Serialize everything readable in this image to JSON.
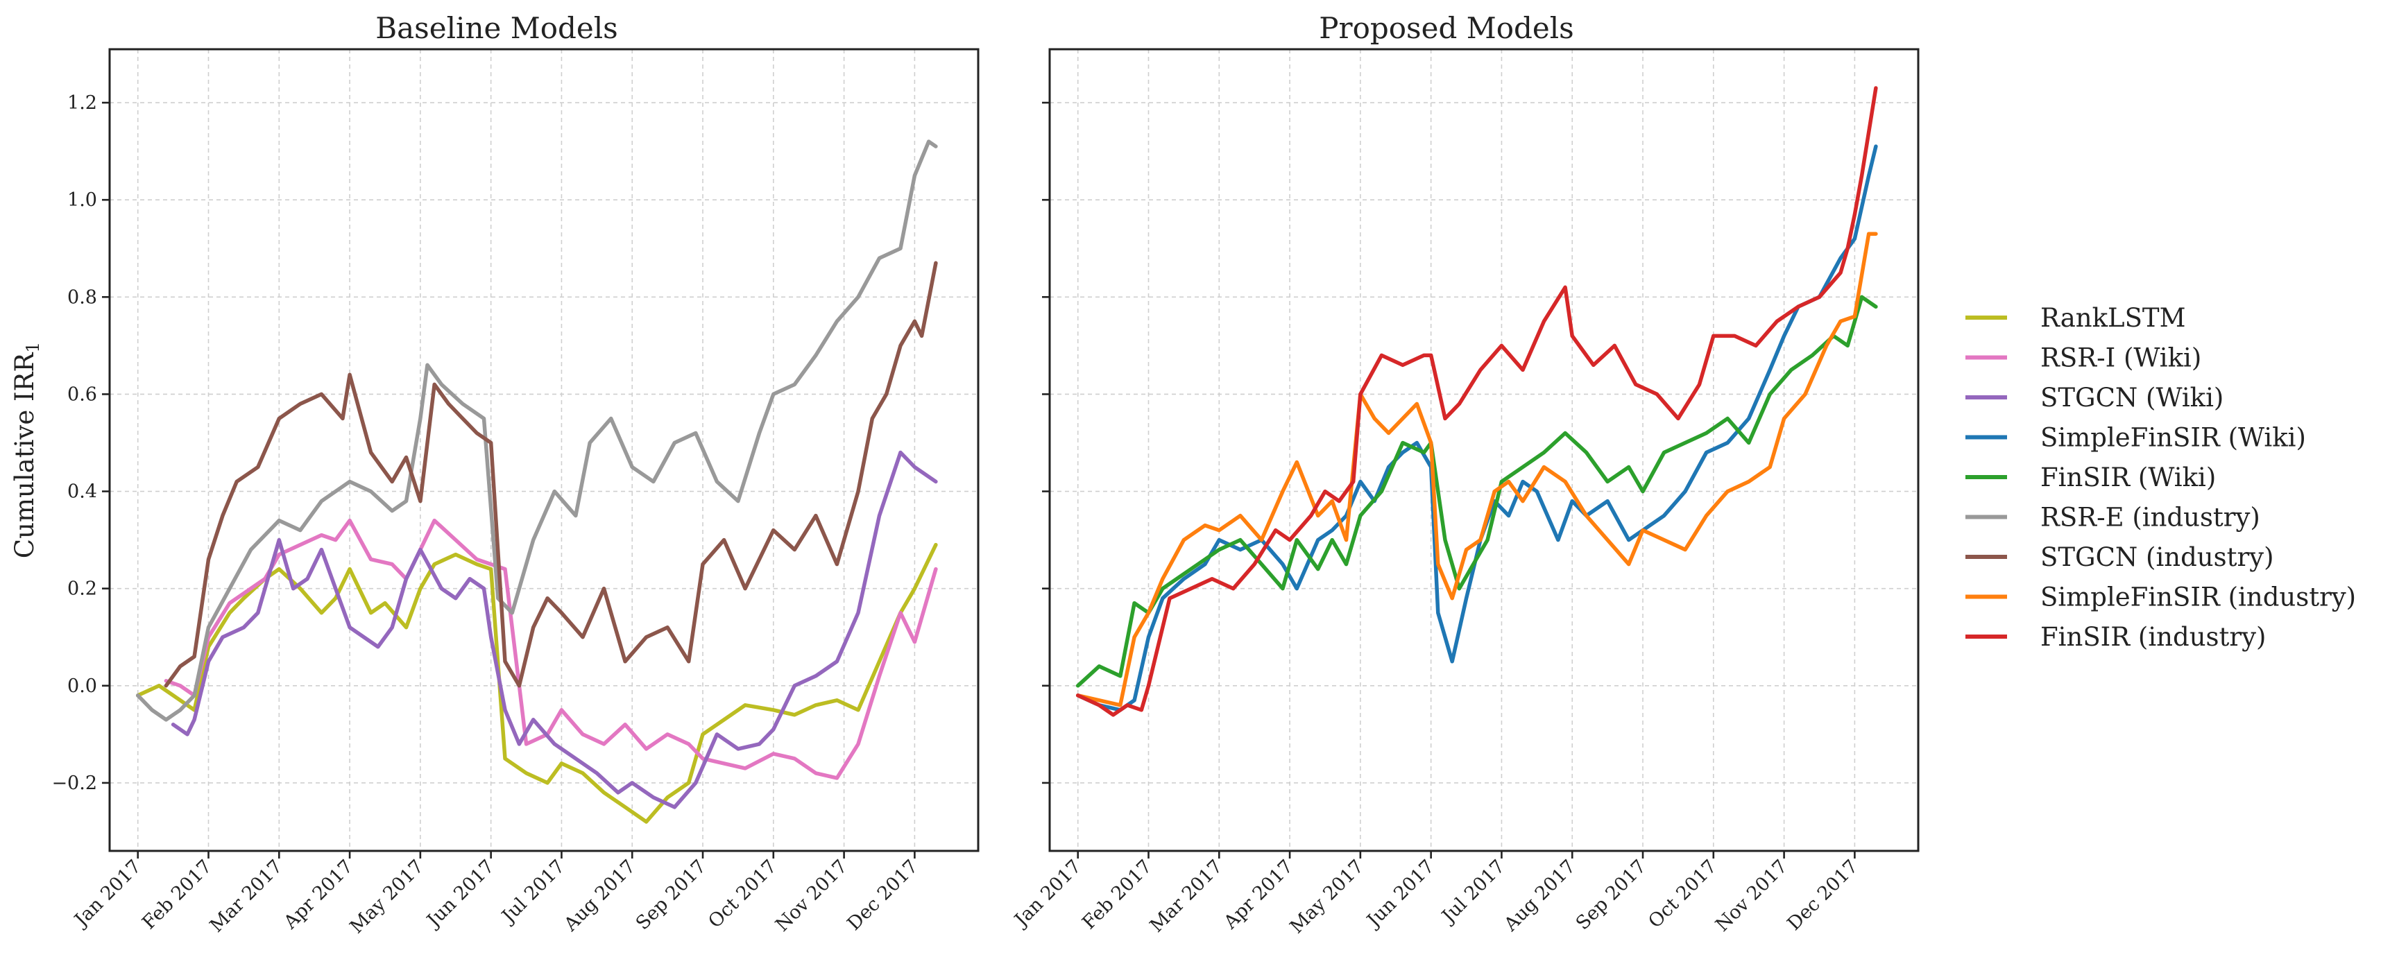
{
  "chart_data": {
    "type": "line",
    "ylabel": "Cumulative IRR",
    "ylabel_subscript": "1",
    "ylim": [
      -0.34,
      1.31
    ],
    "yticks": [
      -0.2,
      0.0,
      0.2,
      0.4,
      0.6,
      0.8,
      1.0,
      1.2
    ],
    "ytick_labels": [
      "−0.2",
      "0.0",
      "0.2",
      "0.4",
      "0.6",
      "0.8",
      "1.0",
      "1.2"
    ],
    "xlim": [
      -0.4,
      11.9
    ],
    "xticks": [
      0,
      1,
      2,
      3,
      4,
      5,
      6,
      7,
      8,
      9,
      10,
      11
    ],
    "xtick_labels": [
      "Jan 2017",
      "Feb 2017",
      "Mar 2017",
      "Apr 2017",
      "May 2017",
      "Jun 2017",
      "Jul 2017",
      "Aug 2017",
      "Sep 2017",
      "Oct 2017",
      "Nov 2017",
      "Dec 2017"
    ],
    "grid": true,
    "legend_position": "right",
    "panels": [
      {
        "title": "Baseline Models",
        "series": [
          {
            "name": "RankLSTM",
            "color": "#bcbd22",
            "x": [
              0.0,
              0.3,
              0.6,
              0.8,
              1.0,
              1.3,
              1.5,
              1.8,
              2.0,
              2.3,
              2.6,
              2.8,
              3.0,
              3.3,
              3.5,
              3.8,
              4.0,
              4.2,
              4.5,
              4.8,
              5.0,
              5.2,
              5.5,
              5.8,
              6.0,
              6.3,
              6.6,
              6.9,
              7.2,
              7.5,
              7.8,
              8.0,
              8.3,
              8.6,
              9.0,
              9.3,
              9.6,
              9.9,
              10.2,
              10.5,
              10.8,
              11.0,
              11.3
            ],
            "y": [
              -0.02,
              0.0,
              -0.03,
              -0.05,
              0.08,
              0.15,
              0.18,
              0.22,
              0.24,
              0.2,
              0.15,
              0.18,
              0.24,
              0.15,
              0.17,
              0.12,
              0.2,
              0.25,
              0.27,
              0.25,
              0.24,
              -0.15,
              -0.18,
              -0.2,
              -0.16,
              -0.18,
              -0.22,
              -0.25,
              -0.28,
              -0.23,
              -0.2,
              -0.1,
              -0.07,
              -0.04,
              -0.05,
              -0.06,
              -0.04,
              -0.03,
              -0.05,
              0.05,
              0.15,
              0.2,
              0.29
            ]
          },
          {
            "name": "RSR-I (Wiki)",
            "color": "#e377c2",
            "x": [
              0.4,
              0.6,
              0.8,
              1.0,
              1.3,
              1.5,
              1.8,
              2.0,
              2.3,
              2.6,
              2.8,
              3.0,
              3.3,
              3.6,
              3.8,
              4.0,
              4.2,
              4.5,
              4.8,
              5.0,
              5.2,
              5.5,
              5.8,
              6.0,
              6.3,
              6.6,
              6.9,
              7.2,
              7.5,
              7.8,
              8.0,
              8.3,
              8.6,
              9.0,
              9.3,
              9.6,
              9.9,
              10.2,
              10.5,
              10.8,
              11.0,
              11.3
            ],
            "y": [
              0.01,
              0.0,
              -0.02,
              0.1,
              0.17,
              0.19,
              0.22,
              0.27,
              0.29,
              0.31,
              0.3,
              0.34,
              0.26,
              0.25,
              0.22,
              0.28,
              0.34,
              0.3,
              0.26,
              0.25,
              0.24,
              -0.12,
              -0.1,
              -0.05,
              -0.1,
              -0.12,
              -0.08,
              -0.13,
              -0.1,
              -0.12,
              -0.15,
              -0.16,
              -0.17,
              -0.14,
              -0.15,
              -0.18,
              -0.19,
              -0.12,
              0.02,
              0.15,
              0.09,
              0.24
            ]
          },
          {
            "name": "STGCN (Wiki)",
            "color": "#9467bd",
            "x": [
              0.5,
              0.7,
              0.8,
              1.0,
              1.2,
              1.5,
              1.7,
              2.0,
              2.2,
              2.4,
              2.6,
              2.8,
              3.0,
              3.2,
              3.4,
              3.6,
              3.8,
              4.0,
              4.3,
              4.5,
              4.7,
              4.9,
              5.0,
              5.2,
              5.4,
              5.6,
              5.9,
              6.2,
              6.5,
              6.8,
              7.0,
              7.3,
              7.6,
              7.9,
              8.2,
              8.5,
              8.8,
              9.0,
              9.3,
              9.6,
              9.9,
              10.2,
              10.5,
              10.8,
              11.0,
              11.3
            ],
            "y": [
              -0.08,
              -0.1,
              -0.07,
              0.05,
              0.1,
              0.12,
              0.15,
              0.3,
              0.2,
              0.22,
              0.28,
              0.2,
              0.12,
              0.1,
              0.08,
              0.12,
              0.22,
              0.28,
              0.2,
              0.18,
              0.22,
              0.2,
              0.1,
              -0.05,
              -0.12,
              -0.07,
              -0.12,
              -0.15,
              -0.18,
              -0.22,
              -0.2,
              -0.23,
              -0.25,
              -0.2,
              -0.1,
              -0.13,
              -0.12,
              -0.09,
              0.0,
              0.02,
              0.05,
              0.15,
              0.35,
              0.48,
              0.45,
              0.42
            ]
          },
          {
            "name": "RSR-E (industry)",
            "color": "#999999",
            "x": [
              0.0,
              0.2,
              0.4,
              0.6,
              0.8,
              1.0,
              1.3,
              1.6,
              2.0,
              2.3,
              2.6,
              3.0,
              3.3,
              3.6,
              3.8,
              4.0,
              4.1,
              4.3,
              4.6,
              4.9,
              5.1,
              5.3,
              5.6,
              5.9,
              6.2,
              6.4,
              6.7,
              7.0,
              7.3,
              7.6,
              7.9,
              8.2,
              8.5,
              8.8,
              9.0,
              9.3,
              9.6,
              9.9,
              10.2,
              10.5,
              10.8,
              11.0,
              11.2,
              11.3
            ],
            "y": [
              -0.02,
              -0.05,
              -0.07,
              -0.05,
              -0.02,
              0.12,
              0.2,
              0.28,
              0.34,
              0.32,
              0.38,
              0.42,
              0.4,
              0.36,
              0.38,
              0.55,
              0.66,
              0.62,
              0.58,
              0.55,
              0.18,
              0.15,
              0.3,
              0.4,
              0.35,
              0.5,
              0.55,
              0.45,
              0.42,
              0.5,
              0.52,
              0.42,
              0.38,
              0.52,
              0.6,
              0.62,
              0.68,
              0.75,
              0.8,
              0.88,
              0.9,
              1.05,
              1.12,
              1.11
            ]
          },
          {
            "name": "STGCN (industry)",
            "color": "#8c564b",
            "x": [
              0.4,
              0.6,
              0.8,
              1.0,
              1.2,
              1.4,
              1.7,
              2.0,
              2.3,
              2.6,
              2.9,
              3.0,
              3.3,
              3.6,
              3.8,
              4.0,
              4.2,
              4.4,
              4.6,
              4.8,
              5.0,
              5.2,
              5.4,
              5.6,
              5.8,
              6.0,
              6.3,
              6.6,
              6.9,
              7.2,
              7.5,
              7.8,
              8.0,
              8.3,
              8.6,
              9.0,
              9.3,
              9.6,
              9.9,
              10.2,
              10.4,
              10.6,
              10.8,
              11.0,
              11.1,
              11.3
            ],
            "y": [
              0.0,
              0.04,
              0.06,
              0.26,
              0.35,
              0.42,
              0.45,
              0.55,
              0.58,
              0.6,
              0.55,
              0.64,
              0.48,
              0.42,
              0.47,
              0.38,
              0.62,
              0.58,
              0.55,
              0.52,
              0.5,
              0.05,
              0.0,
              0.12,
              0.18,
              0.15,
              0.1,
              0.2,
              0.05,
              0.1,
              0.12,
              0.05,
              0.25,
              0.3,
              0.2,
              0.32,
              0.28,
              0.35,
              0.25,
              0.4,
              0.55,
              0.6,
              0.7,
              0.75,
              0.72,
              0.87
            ]
          }
        ]
      },
      {
        "title": "Proposed Models",
        "series": [
          {
            "name": "SimpleFinSIR (Wiki)",
            "color": "#1f77b4",
            "x": [
              0.0,
              0.3,
              0.6,
              0.8,
              1.0,
              1.2,
              1.5,
              1.8,
              2.0,
              2.3,
              2.6,
              2.9,
              3.1,
              3.4,
              3.6,
              3.8,
              4.0,
              4.2,
              4.4,
              4.6,
              4.8,
              5.0,
              5.1,
              5.3,
              5.5,
              5.7,
              5.9,
              6.1,
              6.3,
              6.5,
              6.8,
              7.0,
              7.2,
              7.5,
              7.8,
              8.0,
              8.3,
              8.6,
              8.9,
              9.2,
              9.5,
              9.8,
              10.0,
              10.2,
              10.5,
              10.8,
              11.0,
              11.2,
              11.3
            ],
            "y": [
              -0.02,
              -0.04,
              -0.05,
              -0.03,
              0.1,
              0.18,
              0.22,
              0.25,
              0.3,
              0.28,
              0.3,
              0.25,
              0.2,
              0.3,
              0.32,
              0.35,
              0.42,
              0.38,
              0.45,
              0.48,
              0.5,
              0.45,
              0.15,
              0.05,
              0.18,
              0.3,
              0.38,
              0.35,
              0.42,
              0.4,
              0.3,
              0.38,
              0.35,
              0.38,
              0.3,
              0.32,
              0.35,
              0.4,
              0.48,
              0.5,
              0.55,
              0.65,
              0.72,
              0.78,
              0.8,
              0.88,
              0.92,
              1.05,
              1.11
            ]
          },
          {
            "name": "FinSIR (Wiki)",
            "color": "#2ca02c",
            "x": [
              0.0,
              0.3,
              0.6,
              0.8,
              1.0,
              1.2,
              1.4,
              1.7,
              2.0,
              2.3,
              2.6,
              2.9,
              3.1,
              3.4,
              3.6,
              3.8,
              4.0,
              4.3,
              4.6,
              4.9,
              5.0,
              5.2,
              5.4,
              5.6,
              5.8,
              6.0,
              6.3,
              6.6,
              6.9,
              7.2,
              7.5,
              7.8,
              8.0,
              8.3,
              8.6,
              8.9,
              9.2,
              9.5,
              9.8,
              10.1,
              10.4,
              10.7,
              10.9,
              11.1,
              11.3
            ],
            "y": [
              0.0,
              0.04,
              0.02,
              0.17,
              0.15,
              0.2,
              0.22,
              0.25,
              0.28,
              0.3,
              0.25,
              0.2,
              0.3,
              0.24,
              0.3,
              0.25,
              0.35,
              0.4,
              0.5,
              0.48,
              0.5,
              0.3,
              0.2,
              0.25,
              0.3,
              0.42,
              0.45,
              0.48,
              0.52,
              0.48,
              0.42,
              0.45,
              0.4,
              0.48,
              0.5,
              0.52,
              0.55,
              0.5,
              0.6,
              0.65,
              0.68,
              0.72,
              0.7,
              0.8,
              0.78
            ]
          },
          {
            "name": "SimpleFinSIR (industry)",
            "color": "#ff7f0e",
            "x": [
              0.0,
              0.3,
              0.6,
              0.8,
              1.0,
              1.2,
              1.5,
              1.8,
              2.0,
              2.3,
              2.6,
              2.9,
              3.1,
              3.4,
              3.6,
              3.8,
              4.0,
              4.2,
              4.4,
              4.6,
              4.8,
              5.0,
              5.1,
              5.3,
              5.5,
              5.7,
              5.9,
              6.1,
              6.3,
              6.6,
              6.9,
              7.2,
              7.5,
              7.8,
              8.0,
              8.3,
              8.6,
              8.9,
              9.2,
              9.5,
              9.8,
              10.0,
              10.3,
              10.6,
              10.8,
              11.0,
              11.2,
              11.3
            ],
            "y": [
              -0.02,
              -0.03,
              -0.04,
              0.1,
              0.15,
              0.22,
              0.3,
              0.33,
              0.32,
              0.35,
              0.3,
              0.4,
              0.46,
              0.35,
              0.38,
              0.3,
              0.6,
              0.55,
              0.52,
              0.55,
              0.58,
              0.5,
              0.25,
              0.18,
              0.28,
              0.3,
              0.4,
              0.42,
              0.38,
              0.45,
              0.42,
              0.35,
              0.3,
              0.25,
              0.32,
              0.3,
              0.28,
              0.35,
              0.4,
              0.42,
              0.45,
              0.55,
              0.6,
              0.7,
              0.75,
              0.76,
              0.93,
              0.93
            ]
          },
          {
            "name": "FinSIR (industry)",
            "color": "#d62728",
            "x": [
              0.0,
              0.3,
              0.5,
              0.7,
              0.9,
              1.0,
              1.3,
              1.6,
              1.9,
              2.2,
              2.5,
              2.8,
              3.0,
              3.3,
              3.5,
              3.7,
              3.9,
              4.0,
              4.3,
              4.6,
              4.9,
              5.0,
              5.2,
              5.4,
              5.7,
              6.0,
              6.3,
              6.6,
              6.9,
              7.0,
              7.3,
              7.6,
              7.9,
              8.2,
              8.5,
              8.8,
              9.0,
              9.3,
              9.6,
              9.9,
              10.2,
              10.5,
              10.8,
              10.9,
              11.0,
              11.1,
              11.3
            ],
            "y": [
              -0.02,
              -0.04,
              -0.06,
              -0.04,
              -0.05,
              0.0,
              0.18,
              0.2,
              0.22,
              0.2,
              0.25,
              0.32,
              0.3,
              0.35,
              0.4,
              0.38,
              0.42,
              0.6,
              0.68,
              0.66,
              0.68,
              0.68,
              0.55,
              0.58,
              0.65,
              0.7,
              0.65,
              0.75,
              0.82,
              0.72,
              0.66,
              0.7,
              0.62,
              0.6,
              0.55,
              0.62,
              0.72,
              0.72,
              0.7,
              0.75,
              0.78,
              0.8,
              0.85,
              0.9,
              0.97,
              1.05,
              1.23
            ]
          }
        ]
      }
    ]
  }
}
